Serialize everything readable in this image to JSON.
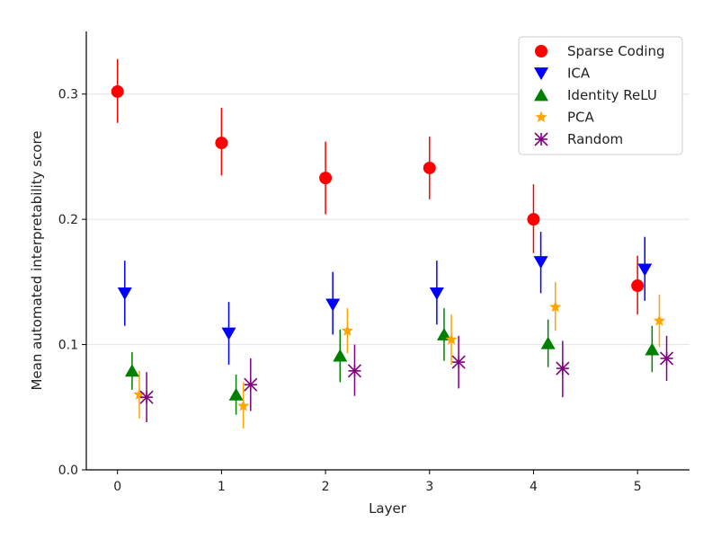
{
  "chart_data": {
    "type": "scatter",
    "title": "",
    "xlabel": "Layer",
    "ylabel": "Mean automated interpretability score",
    "xlim": [
      -0.3,
      5.5
    ],
    "ylim": [
      0.0,
      0.35
    ],
    "x_ticks": [
      0,
      1,
      2,
      3,
      4,
      5
    ],
    "x_tick_labels": [
      "0",
      "1",
      "2",
      "3",
      "4",
      "5"
    ],
    "y_ticks": [
      0.0,
      0.1,
      0.2,
      0.3
    ],
    "y_tick_labels": [
      "0.0",
      "0.1",
      "0.2",
      "0.3"
    ],
    "grid": "horizontal",
    "legend_position": "top-right",
    "categories": [
      0,
      1,
      2,
      3,
      4,
      5
    ],
    "series": [
      {
        "name": "Sparse Coding",
        "color": "#ff0000",
        "marker": "circle",
        "offset": 0.0,
        "values": [
          0.302,
          0.261,
          0.233,
          0.241,
          0.2,
          0.147
        ],
        "err_low": [
          0.277,
          0.235,
          0.204,
          0.216,
          0.173,
          0.124
        ],
        "err_high": [
          0.328,
          0.289,
          0.262,
          0.266,
          0.228,
          0.171
        ]
      },
      {
        "name": "ICA",
        "color": "#0000ff",
        "marker": "triangle-down",
        "offset": 0.07,
        "values": [
          0.141,
          0.109,
          0.132,
          0.141,
          0.166,
          0.16
        ],
        "err_low": [
          0.115,
          0.084,
          0.108,
          0.116,
          0.141,
          0.135
        ],
        "err_high": [
          0.167,
          0.134,
          0.158,
          0.167,
          0.19,
          0.186
        ]
      },
      {
        "name": "Identity ReLU",
        "color": "#008000",
        "marker": "triangle-up",
        "offset": 0.14,
        "values": [
          0.079,
          0.06,
          0.091,
          0.108,
          0.101,
          0.096
        ],
        "err_low": [
          0.064,
          0.044,
          0.07,
          0.087,
          0.082,
          0.078
        ],
        "err_high": [
          0.094,
          0.076,
          0.112,
          0.129,
          0.12,
          0.115
        ]
      },
      {
        "name": "PCA",
        "color": "#ffa500",
        "marker": "star",
        "offset": 0.21,
        "values": [
          0.06,
          0.051,
          0.111,
          0.104,
          0.13,
          0.119
        ],
        "err_low": [
          0.041,
          0.033,
          0.093,
          0.084,
          0.111,
          0.098
        ],
        "err_high": [
          0.079,
          0.07,
          0.129,
          0.124,
          0.15,
          0.14
        ]
      },
      {
        "name": "Random",
        "color": "#800080",
        "marker": "x",
        "offset": 0.28,
        "values": [
          0.058,
          0.068,
          0.079,
          0.086,
          0.081,
          0.089
        ],
        "err_low": [
          0.038,
          0.047,
          0.059,
          0.065,
          0.058,
          0.071
        ],
        "err_high": [
          0.078,
          0.089,
          0.1,
          0.107,
          0.103,
          0.107
        ]
      }
    ]
  }
}
